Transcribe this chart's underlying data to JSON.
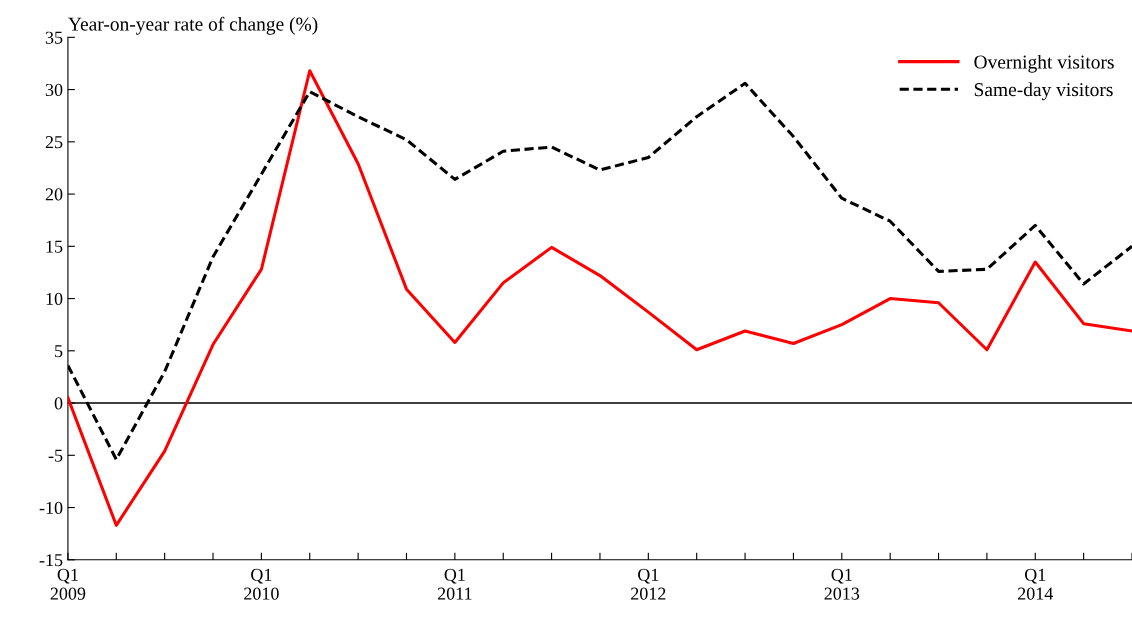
{
  "chart_data": {
    "type": "line",
    "ylabel": "Year-on-year rate of change (%)",
    "categories": [
      "Q1\n2009",
      null,
      null,
      null,
      "Q1\n2010",
      null,
      null,
      null,
      "Q1\n2011",
      null,
      null,
      null,
      "Q1\n2012",
      null,
      null,
      null,
      "Q1\n2013",
      null,
      null,
      null,
      "Q1\n2014",
      null,
      null
    ],
    "series": [
      {
        "name": "Overnight visitors",
        "color": "#ff0000",
        "line_style": "solid",
        "values": [
          0.5,
          -11.7,
          -4.6,
          5.6,
          12.8,
          31.8,
          22.9,
          10.9,
          5.8,
          11.5,
          14.9,
          12.2,
          8.7,
          5.1,
          6.9,
          5.7,
          7.5,
          10.0,
          9.6,
          5.1,
          13.5,
          7.6,
          6.9
        ]
      },
      {
        "name": "Same-day visitors",
        "color": "#000000",
        "line_style": "dashed",
        "values": [
          3.6,
          -5.4,
          3.0,
          14.0,
          21.9,
          29.8,
          27.4,
          25.2,
          21.4,
          24.1,
          24.5,
          22.3,
          23.5,
          27.4,
          30.6,
          25.5,
          19.6,
          17.4,
          12.6,
          12.8,
          17.0,
          11.4,
          15.0
        ]
      }
    ],
    "ylim": [
      -15,
      35
    ],
    "yticks": [
      -15,
      -10,
      -5,
      0,
      5,
      10,
      15,
      20,
      25,
      30,
      35
    ],
    "ref_lines": [
      {
        "axis": "y",
        "value": 0,
        "color": "#000000"
      }
    ],
    "grid": false,
    "legend": "top right",
    "marker": "none"
  }
}
